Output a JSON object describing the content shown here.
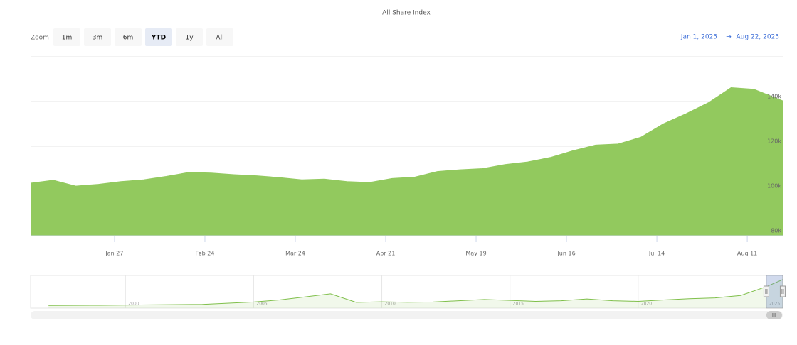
{
  "chart_data": {
    "type": "area",
    "title": "All Share Index",
    "x": [
      "2025-01-01",
      "2025-01-08",
      "2025-01-15",
      "2025-01-22",
      "2025-01-29",
      "2025-02-05",
      "2025-02-12",
      "2025-02-19",
      "2025-02-26",
      "2025-03-05",
      "2025-03-12",
      "2025-03-19",
      "2025-03-26",
      "2025-04-02",
      "2025-04-09",
      "2025-04-16",
      "2025-04-23",
      "2025-04-30",
      "2025-05-07",
      "2025-05-14",
      "2025-05-21",
      "2025-05-28",
      "2025-06-04",
      "2025-06-11",
      "2025-06-18",
      "2025-06-25",
      "2025-07-02",
      "2025-07-09",
      "2025-07-16",
      "2025-07-23",
      "2025-07-30",
      "2025-08-06",
      "2025-08-13",
      "2025-08-22"
    ],
    "values": [
      103500,
      104800,
      102200,
      103000,
      104200,
      105000,
      106500,
      108300,
      108000,
      107300,
      106800,
      106000,
      105000,
      105300,
      104200,
      103800,
      105600,
      106200,
      108700,
      109500,
      110000,
      111800,
      113000,
      115000,
      118000,
      120500,
      121000,
      124000,
      130000,
      134500,
      139500,
      146200,
      145500,
      140300
    ],
    "color": "#92c95e",
    "xlim": [
      "2025-01-01",
      "2025-08-22"
    ],
    "xticks": [
      {
        "value": "2025-01-27",
        "label": "Jan 27"
      },
      {
        "value": "2025-02-24",
        "label": "Feb 24"
      },
      {
        "value": "2025-03-24",
        "label": "Mar 24"
      },
      {
        "value": "2025-04-21",
        "label": "Apr 21"
      },
      {
        "value": "2025-05-19",
        "label": "May 19"
      },
      {
        "value": "2025-06-16",
        "label": "Jun 16"
      },
      {
        "value": "2025-07-14",
        "label": "Jul 14"
      },
      {
        "value": "2025-08-11",
        "label": "Aug 11"
      }
    ],
    "ylim": [
      80000,
      160000
    ],
    "yticks": [
      {
        "value": 80000,
        "label": "80k"
      },
      {
        "value": 100000,
        "label": "100k"
      },
      {
        "value": 120000,
        "label": "120k"
      },
      {
        "value": 140000,
        "label": "140k"
      }
    ],
    "grid": true,
    "navigator": {
      "type": "area",
      "x": [
        1997,
        1999,
        2001,
        2003,
        2005,
        2006,
        2007,
        2008,
        2009,
        2010,
        2011,
        2012,
        2013,
        2014,
        2015,
        2016,
        2017,
        2018,
        2019,
        2020,
        2021,
        2022,
        2023,
        2024,
        2025,
        2025.64
      ],
      "values": [
        13000,
        14000,
        16000,
        18000,
        30000,
        40000,
        55000,
        70000,
        28000,
        31000,
        29000,
        30000,
        36000,
        42000,
        38000,
        33000,
        36000,
        45000,
        36000,
        33000,
        40000,
        46000,
        50000,
        62000,
        105000,
        140000
      ],
      "color": "#7fbf4a",
      "xlim": [
        1996.3,
        2025.64
      ],
      "xticks": [
        2000,
        2005,
        2010,
        2015,
        2020,
        2025
      ],
      "ylim": [
        0,
        160000
      ]
    }
  },
  "range_selector": {
    "zoom_label": "Zoom",
    "buttons": [
      "1m",
      "3m",
      "6m",
      "YTD",
      "1y",
      "All"
    ],
    "selected": 3,
    "from": "Jan 1, 2025",
    "arrow": "→",
    "to": "Aug 22, 2025"
  }
}
